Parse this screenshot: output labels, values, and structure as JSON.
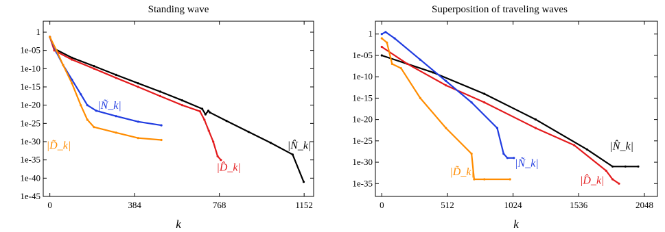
{
  "chart_data": [
    {
      "type": "scatter",
      "title": "Standing wave",
      "xlabel": "k",
      "ylabel": "",
      "yscale": "log",
      "xlim": [
        -30,
        1195
      ],
      "ylim": [
        1e-45,
        1000
      ],
      "xticks": [
        0,
        384,
        768,
        1152
      ],
      "yticks": [
        {
          "value": 1,
          "label": "1"
        },
        {
          "value": 1e-05,
          "label": "1e-05"
        },
        {
          "value": 1e-10,
          "label": "1e-10"
        },
        {
          "value": 1e-15,
          "label": "1e-15"
        },
        {
          "value": 1e-20,
          "label": "1e-20"
        },
        {
          "value": 1e-25,
          "label": "1e-25"
        },
        {
          "value": 1e-30,
          "label": "1e-30"
        },
        {
          "value": 1e-35,
          "label": "1e-35"
        },
        {
          "value": 1e-40,
          "label": "1e-40"
        },
        {
          "value": 1e-45,
          "label": "1e-45"
        }
      ],
      "grid": false,
      "series": [
        {
          "name": "|N̂_k|",
          "color": "#000000",
          "points": [
            [
              0,
              0.05
            ],
            [
              20,
              3e-05
            ],
            [
              100,
              1e-07
            ],
            [
              200,
              5e-10
            ],
            [
              300,
              2e-12
            ],
            [
              400,
              1e-14
            ],
            [
              500,
              5e-17
            ],
            [
              600,
              2e-19
            ],
            [
              690,
              1e-21
            ],
            [
              705,
              3e-23
            ],
            [
              718,
              3e-22
            ],
            [
              725,
              1e-22
            ],
            [
              800,
              5e-25
            ],
            [
              900,
              5e-28
            ],
            [
              1000,
              5e-31
            ],
            [
              1100,
              3e-34
            ],
            [
              1150,
              1e-41
            ]
          ],
          "label_at": [
            1130,
            1e-32
          ]
        },
        {
          "name": "|D̂_k|",
          "color": "#e31a1c",
          "points": [
            [
              0,
              0.05
            ],
            [
              20,
              1e-05
            ],
            [
              100,
              3e-08
            ],
            [
              200,
              1e-10
            ],
            [
              300,
              3e-13
            ],
            [
              400,
              1e-15
            ],
            [
              500,
              3e-18
            ],
            [
              600,
              1e-20
            ],
            [
              680,
              2e-22
            ],
            [
              700,
              1e-24
            ],
            [
              720,
              1e-27
            ],
            [
              740,
              1e-30
            ],
            [
              760,
              1e-34
            ],
            [
              775,
              1e-35
            ]
          ],
          "label_at": [
            810,
            1e-38
          ]
        },
        {
          "name": "|Ñ_k|",
          "color": "#1f3be0",
          "points": [
            [
              0,
              0.05
            ],
            [
              30,
              3e-06
            ],
            [
              60,
              1e-09
            ],
            [
              100,
              1e-13
            ],
            [
              140,
              1e-17
            ],
            [
              170,
              1e-20
            ],
            [
              210,
              3e-22
            ],
            [
              300,
              1e-23
            ],
            [
              400,
              3e-25
            ],
            [
              505,
              3e-26
            ]
          ],
          "label_at": [
            270,
            1e-21
          ]
        },
        {
          "name": "|D̃_k|",
          "color": "#ff8c00",
          "points": [
            [
              0,
              0.05
            ],
            [
              30,
              1e-05
            ],
            [
              60,
              1e-09
            ],
            [
              100,
              1e-14
            ],
            [
              140,
              1e-20
            ],
            [
              170,
              1e-24
            ],
            [
              200,
              1e-26
            ],
            [
              300,
              3e-28
            ],
            [
              400,
              1e-29
            ],
            [
              505,
              3e-30
            ]
          ],
          "label_at": [
            40,
            1e-32
          ]
        }
      ]
    },
    {
      "type": "scatter",
      "title": "Superposition of traveling waves",
      "xlabel": "k",
      "ylabel": "",
      "yscale": "log",
      "xlim": [
        -50,
        2150
      ],
      "ylim": [
        1e-38,
        1000
      ],
      "xticks": [
        0,
        512,
        1024,
        1536,
        2048
      ],
      "yticks": [
        {
          "value": 1,
          "label": "1"
        },
        {
          "value": 1e-05,
          "label": "1e-05"
        },
        {
          "value": 1e-10,
          "label": "1e-10"
        },
        {
          "value": 1e-15,
          "label": "1e-15"
        },
        {
          "value": 1e-20,
          "label": "1e-20"
        },
        {
          "value": 1e-25,
          "label": "1e-25"
        },
        {
          "value": 1e-30,
          "label": "1e-30"
        },
        {
          "value": 1e-35,
          "label": "1e-35"
        }
      ],
      "grid": false,
      "series": [
        {
          "name": "|N̂_k|",
          "color": "#000000",
          "points": [
            [
              0,
              1e-05
            ],
            [
              200,
              1e-07
            ],
            [
              400,
              1e-09
            ],
            [
              800,
              1e-14
            ],
            [
              1200,
              1e-20
            ],
            [
              1600,
              1e-27
            ],
            [
              1800,
              1e-31
            ],
            [
              1900,
              1e-31
            ],
            [
              2000,
              1e-31
            ]
          ],
          "label_at": [
            1870,
            1e-27
          ]
        },
        {
          "name": "|D̂_k|",
          "color": "#e31a1c",
          "points": [
            [
              0,
              0.001
            ],
            [
              200,
              1e-07
            ],
            [
              500,
              1e-12
            ],
            [
              800,
              1e-16
            ],
            [
              1200,
              1e-22
            ],
            [
              1500,
              1e-26
            ],
            [
              1750,
              1e-32
            ],
            [
              1800,
              1e-34
            ],
            [
              1850,
              1e-35
            ]
          ],
          "label_at": [
            1640,
            1e-35
          ]
        },
        {
          "name": "|Ñ_k|",
          "color": "#1f3be0",
          "points": [
            [
              0,
              1
            ],
            [
              30,
              3
            ],
            [
              100,
              0.1
            ],
            [
              300,
              1e-06
            ],
            [
              500,
              1e-11
            ],
            [
              700,
              1e-16
            ],
            [
              900,
              1e-22
            ],
            [
              950,
              1e-28
            ],
            [
              980,
              1e-29
            ],
            [
              1030,
              1e-29
            ]
          ],
          "label_at": [
            1130,
            1e-31
          ]
        },
        {
          "name": "|D̃_k|",
          "color": "#ff8c00",
          "points": [
            [
              0,
              0.1
            ],
            [
              40,
              0.01
            ],
            [
              80,
              1e-07
            ],
            [
              150,
              1e-08
            ],
            [
              300,
              1e-15
            ],
            [
              500,
              1e-22
            ],
            [
              700,
              1e-28
            ],
            [
              720,
              1e-34
            ],
            [
              800,
              1e-34
            ],
            [
              1000,
              1e-34
            ]
          ],
          "label_at": [
            625,
            1e-33
          ]
        }
      ]
    }
  ]
}
